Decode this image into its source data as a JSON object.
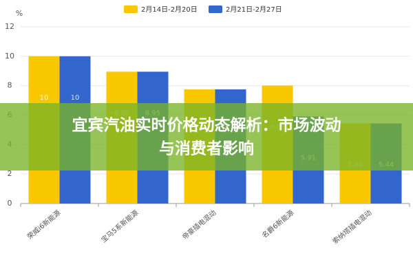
{
  "chart_data": {
    "type": "bar",
    "y_unit": "%",
    "categories": [
      "荣威i6新能源",
      "宝马5系新能源",
      "帝豪插电混动",
      "名爵6新能源",
      "索纳塔插电混动"
    ],
    "series": [
      {
        "name": "2月14日-2月20日",
        "color": "#f9c800",
        "values": [
          10,
          8.95,
          7.75,
          8.01,
          5.44
        ]
      },
      {
        "name": "2月21日-2月27日",
        "color": "#3366cc",
        "values": [
          10,
          8.95,
          7.75,
          5.91,
          5.44
        ]
      }
    ],
    "ylim": [
      0,
      12
    ],
    "yticks": [
      0,
      2,
      4,
      6,
      8,
      10,
      12
    ],
    "grid": true,
    "legend": "top"
  },
  "banner": {
    "lines": [
      "宜宾汽油实时价格动态解析：市场波动",
      "与消费者影响"
    ]
  }
}
